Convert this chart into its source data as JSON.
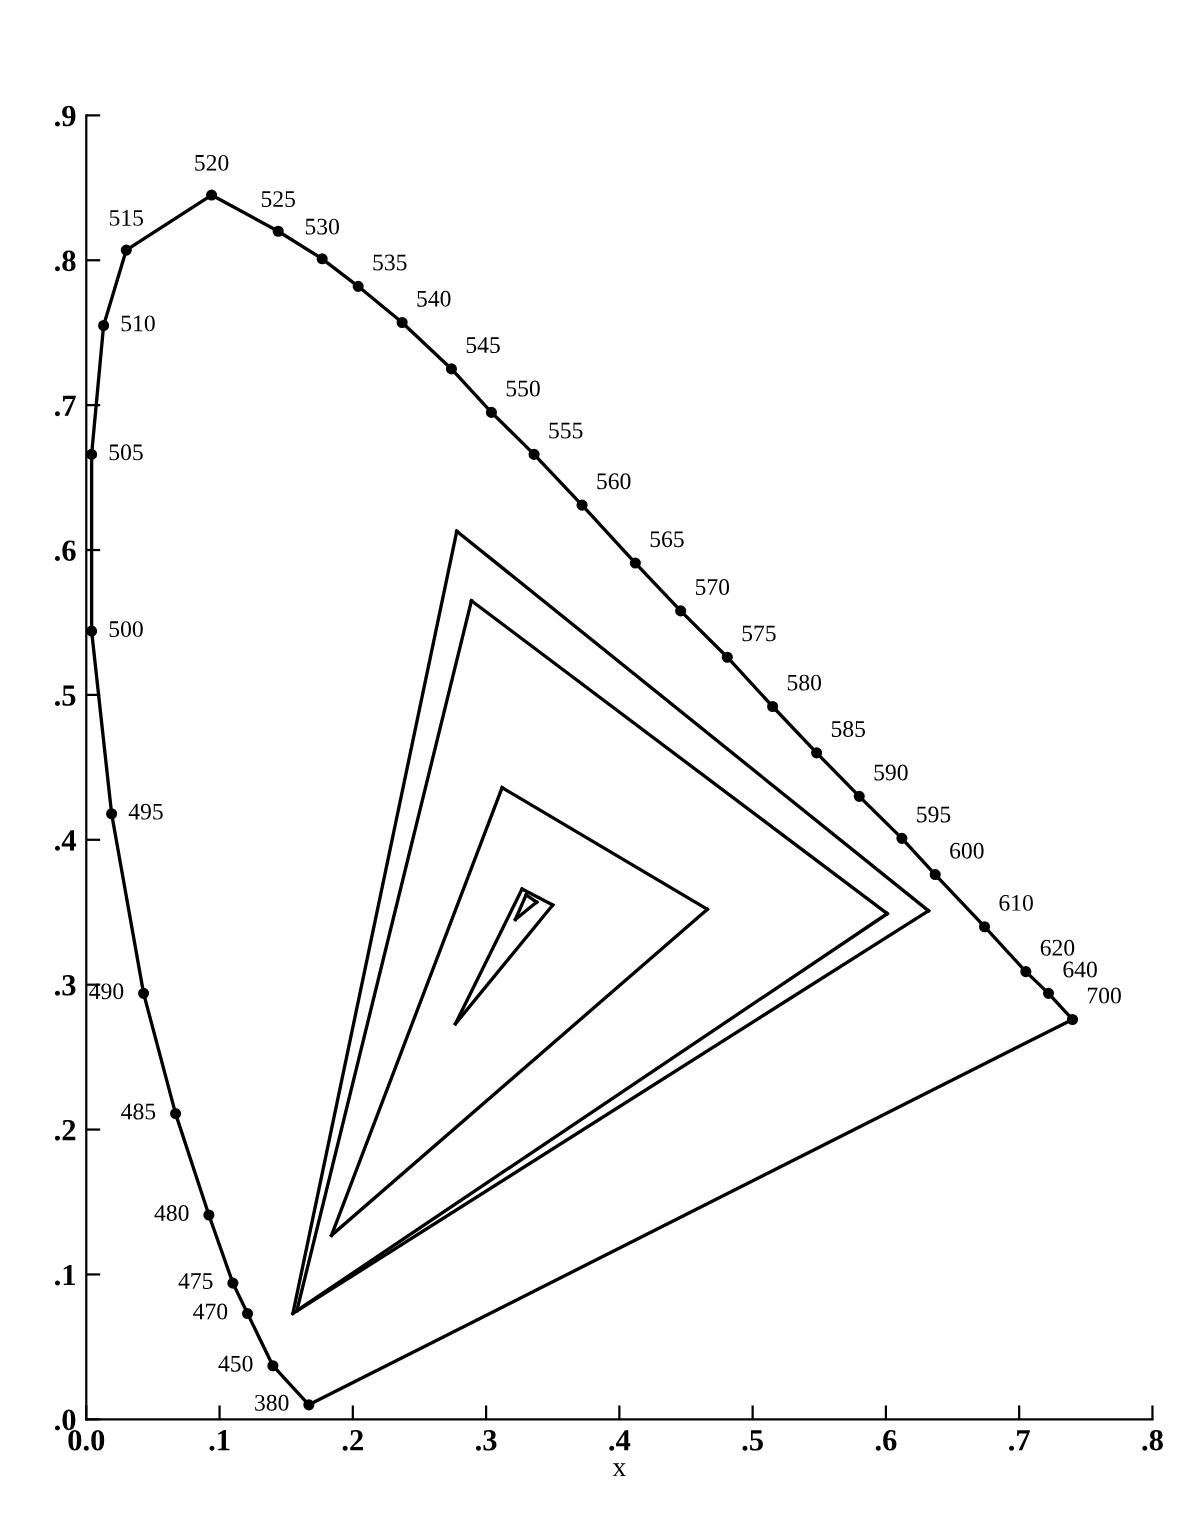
{
  "chart_data": {
    "type": "line",
    "xlabel": "x",
    "xlim": [
      0,
      0.8
    ],
    "ylim": [
      0,
      0.9
    ],
    "xticks": [
      {
        "value": 0,
        "label": "0.0"
      },
      {
        "value": 0.1,
        "label": ".1"
      },
      {
        "value": 0.2,
        "label": ".2"
      },
      {
        "value": 0.3,
        "label": ".3"
      },
      {
        "value": 0.4,
        "label": ".4"
      },
      {
        "value": 0.5,
        "label": ".5"
      },
      {
        "value": 0.6,
        "label": ".6"
      },
      {
        "value": 0.7,
        "label": ".7"
      },
      {
        "value": 0.8,
        "label": ".8"
      }
    ],
    "yticks": [
      {
        "value": 0,
        "label": ".0"
      },
      {
        "value": 0.1,
        "label": ".1"
      },
      {
        "value": 0.2,
        "label": ".2"
      },
      {
        "value": 0.3,
        "label": ".3"
      },
      {
        "value": 0.4,
        "label": ".4"
      },
      {
        "value": 0.5,
        "label": ".5"
      },
      {
        "value": 0.6,
        "label": ".6"
      },
      {
        "value": 0.7,
        "label": ".7"
      },
      {
        "value": 0.8,
        "label": ".8"
      },
      {
        "value": 0.9,
        "label": ".9"
      }
    ],
    "grid": false,
    "legend": false,
    "marker": "circle",
    "line_style": "solid",
    "series": [
      {
        "color": "#000000",
        "x": [
          0.167,
          0.14,
          0.121,
          0.11,
          0.092,
          0.067,
          0.043,
          0.019,
          0.004,
          0.004,
          0.013,
          0.03,
          0.094,
          0.144,
          0.177,
          0.204,
          0.237,
          0.274,
          0.304,
          0.336,
          0.372,
          0.412,
          0.446,
          0.481,
          0.515,
          0.548,
          0.58,
          0.612,
          0.637,
          0.674,
          0.705,
          0.722,
          0.74
        ],
        "values": [
          0.01,
          0.037,
          0.073,
          0.094,
          0.141,
          0.211,
          0.294,
          0.418,
          0.544,
          0.666,
          0.755,
          0.807,
          0.845,
          0.82,
          0.801,
          0.782,
          0.757,
          0.725,
          0.695,
          0.666,
          0.631,
          0.591,
          0.558,
          0.526,
          0.492,
          0.46,
          0.43,
          0.401,
          0.376,
          0.34,
          0.309,
          0.294,
          0.276
        ]
      },
      {
        "color": "#000000",
        "marker": "none",
        "x": [
          0.167,
          0.74
        ],
        "values": [
          0.01,
          0.276
        ]
      },
      {
        "color": "#000000",
        "marker": "none",
        "x": [
          0.155,
          0.278
        ],
        "values": [
          0.073,
          0.613
        ]
      },
      {
        "color": "#000000",
        "marker": "none",
        "x": [
          0.278,
          0.632
        ],
        "values": [
          0.613,
          0.351
        ]
      },
      {
        "color": "#000000",
        "marker": "none",
        "x": [
          0.155,
          0.632
        ],
        "values": [
          0.073,
          0.351
        ]
      },
      {
        "color": "#000000",
        "marker": "none",
        "x": [
          0.158,
          0.289
        ],
        "values": [
          0.075,
          0.565
        ]
      },
      {
        "color": "#000000",
        "marker": "none",
        "x": [
          0.289,
          0.601
        ],
        "values": [
          0.565,
          0.349
        ]
      },
      {
        "color": "#000000",
        "marker": "none",
        "x": [
          0.158,
          0.601
        ],
        "values": [
          0.075,
          0.349
        ]
      },
      {
        "color": "#000000",
        "marker": "none",
        "x": [
          0.184,
          0.312
        ],
        "values": [
          0.127,
          0.436
        ]
      },
      {
        "color": "#000000",
        "marker": "none",
        "x": [
          0.312,
          0.466
        ],
        "values": [
          0.436,
          0.352
        ]
      },
      {
        "color": "#000000",
        "marker": "none",
        "x": [
          0.184,
          0.466
        ],
        "values": [
          0.127,
          0.352
        ]
      },
      {
        "color": "#000000",
        "marker": "none",
        "x": [
          0.277,
          0.327
        ],
        "values": [
          0.273,
          0.366
        ]
      },
      {
        "color": "#000000",
        "marker": "none",
        "x": [
          0.327,
          0.35
        ],
        "values": [
          0.366,
          0.355
        ]
      },
      {
        "color": "#000000",
        "marker": "none",
        "x": [
          0.277,
          0.35
        ],
        "values": [
          0.273,
          0.355
        ]
      },
      {
        "color": "#000000",
        "marker": "none",
        "x": [
          0.322,
          0.33
        ],
        "values": [
          0.345,
          0.362
        ]
      },
      {
        "color": "#000000",
        "marker": "none",
        "x": [
          0.33,
          0.338
        ],
        "values": [
          0.362,
          0.357
        ]
      },
      {
        "color": "#000000",
        "marker": "none",
        "x": [
          0.322,
          0.338
        ],
        "values": [
          0.345,
          0.357
        ]
      }
    ],
    "annotations": [
      {
        "text": "380",
        "x": 0.167,
        "y": 0.01
      },
      {
        "text": "450",
        "x": 0.14,
        "y": 0.037
      },
      {
        "text": "470",
        "x": 0.121,
        "y": 0.073
      },
      {
        "text": "475",
        "x": 0.11,
        "y": 0.094
      },
      {
        "text": "480",
        "x": 0.092,
        "y": 0.141
      },
      {
        "text": "485",
        "x": 0.067,
        "y": 0.211
      },
      {
        "text": "490",
        "x": 0.043,
        "y": 0.294
      },
      {
        "text": "495",
        "x": 0.019,
        "y": 0.418
      },
      {
        "text": "500",
        "x": 0.004,
        "y": 0.544
      },
      {
        "text": "505",
        "x": 0.004,
        "y": 0.666
      },
      {
        "text": "510",
        "x": 0.013,
        "y": 0.755
      },
      {
        "text": "515",
        "x": 0.03,
        "y": 0.807
      },
      {
        "text": "520",
        "x": 0.094,
        "y": 0.845
      },
      {
        "text": "525",
        "x": 0.144,
        "y": 0.82
      },
      {
        "text": "530",
        "x": 0.177,
        "y": 0.801
      },
      {
        "text": "535",
        "x": 0.204,
        "y": 0.782
      },
      {
        "text": "540",
        "x": 0.237,
        "y": 0.757
      },
      {
        "text": "545",
        "x": 0.274,
        "y": 0.725
      },
      {
        "text": "550",
        "x": 0.304,
        "y": 0.695
      },
      {
        "text": "555",
        "x": 0.336,
        "y": 0.666
      },
      {
        "text": "560",
        "x": 0.372,
        "y": 0.631
      },
      {
        "text": "565",
        "x": 0.412,
        "y": 0.591
      },
      {
        "text": "570",
        "x": 0.446,
        "y": 0.558
      },
      {
        "text": "575",
        "x": 0.481,
        "y": 0.526
      },
      {
        "text": "580",
        "x": 0.515,
        "y": 0.492
      },
      {
        "text": "585",
        "x": 0.548,
        "y": 0.46
      },
      {
        "text": "590",
        "x": 0.58,
        "y": 0.43
      },
      {
        "text": "595",
        "x": 0.612,
        "y": 0.401
      },
      {
        "text": "600",
        "x": 0.637,
        "y": 0.376
      },
      {
        "text": "610",
        "x": 0.674,
        "y": 0.34
      },
      {
        "text": "620",
        "x": 0.705,
        "y": 0.309
      },
      {
        "text": "640",
        "x": 0.722,
        "y": 0.294
      },
      {
        "text": "700",
        "x": 0.74,
        "y": 0.276
      }
    ]
  }
}
